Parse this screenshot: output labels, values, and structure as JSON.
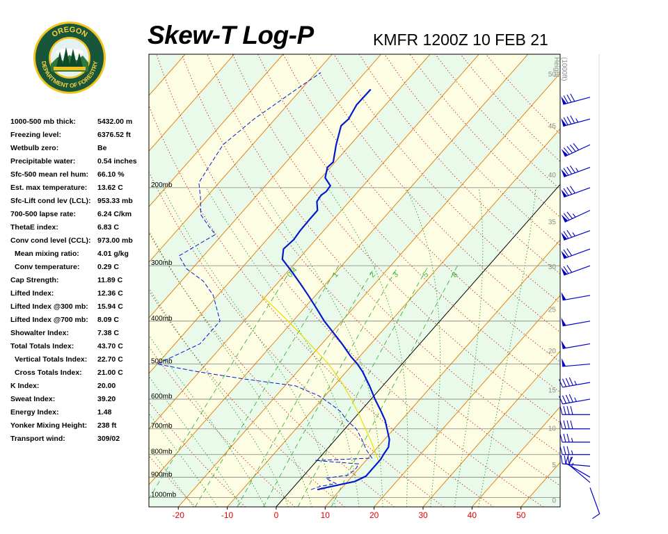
{
  "logo": {
    "name": "Oregon Department of Forestry seal",
    "top_text": "OREGON",
    "bottom_text": "DEPARTMENT OF FORESTRY"
  },
  "header": {
    "title": "Skew-T Log-P",
    "subtitle": "KMFR 1200Z 10 FEB 21"
  },
  "indices": [
    {
      "label": "1000-500 mb thick:",
      "value": "5432.00 m"
    },
    {
      "label": "Freezing level:",
      "value": "6376.52 ft"
    },
    {
      "label": "Wetbulb zero:",
      "value": "Be"
    },
    {
      "label": "Precipitable water:",
      "value": "0.54 inches"
    },
    {
      "label": "Sfc-500 mean rel hum:",
      "value": "66.10 %"
    },
    {
      "label": "Est. max temperature:",
      "value": "13.62 C"
    },
    {
      "label": "Sfc-Lift cond lev (LCL):",
      "value": "953.33 mb"
    },
    {
      "label": "700-500 lapse rate:",
      "value": "6.24 C/km"
    },
    {
      "label": "ThetaE index:",
      "value": "6.83 C"
    },
    {
      "label": "Conv cond level (CCL):",
      "value": "973.00 mb"
    },
    {
      "label": "Mean mixing ratio:",
      "value": "4.01 g/kg",
      "indent": true
    },
    {
      "label": "Conv temperature:",
      "value": "0.29 C",
      "indent": true
    },
    {
      "label": "Cap Strength:",
      "value": "11.89 C"
    },
    {
      "label": "Lifted Index:",
      "value": "12.36 C"
    },
    {
      "label": "Lifted Index @300 mb:",
      "value": "15.94 C"
    },
    {
      "label": "Lifted Index @700 mb:",
      "value": "8.09 C"
    },
    {
      "label": "Showalter Index:",
      "value": "7.38 C"
    },
    {
      "label": "Total Totals Index:",
      "value": "43.70 C"
    },
    {
      "label": "Vertical Totals Index:",
      "value": "22.70 C",
      "indent": true
    },
    {
      "label": "Cross Totals Index:",
      "value": "21.00 C",
      "indent": true
    },
    {
      "label": "K Index:",
      "value": "20.00"
    },
    {
      "label": "Sweat Index:",
      "value": "39.20"
    },
    {
      "label": "Energy Index:",
      "value": "1.48"
    },
    {
      "label": "Yonker Mixing Height:",
      "value": "238 ft"
    },
    {
      "label": "Transport wind:",
      "value": "309/02"
    }
  ],
  "chart_data": {
    "type": "line",
    "diagram": "skew-t log-p",
    "title": "Skew-T Log-P",
    "subtitle": "KMFR 1200Z 10 FEB 21",
    "x_ticks": [
      "-20",
      "-10",
      "0",
      "10",
      "20",
      "30",
      "40",
      "50"
    ],
    "x_range_temperature_c": [
      -26,
      58
    ],
    "pressure_range_mb": [
      1050,
      100
    ],
    "isobars_mb": [
      200,
      300,
      400,
      500,
      600,
      700,
      800,
      900,
      1000
    ],
    "isobar_labels": [
      "200mb",
      "300mb",
      "400mb",
      "500mb",
      "600mb",
      "700mb",
      "800mb",
      "900mb",
      "1000mb"
    ],
    "height_axis_title": [
      "Height",
      "(1000ft)"
    ],
    "height_ticks": [
      {
        "label": "0",
        "kft": 0
      },
      {
        "label": "5",
        "kft": 5
      },
      {
        "label": "10",
        "kft": 10
      },
      {
        "label": "15",
        "kft": 15
      },
      {
        "label": "20",
        "kft": 20
      },
      {
        "label": "25",
        "kft": 25
      },
      {
        "label": "30",
        "kft": 30
      },
      {
        "label": "35",
        "kft": 35
      },
      {
        "label": "40",
        "kft": 40
      },
      {
        "label": "45",
        "kft": 45
      },
      {
        "label": "50",
        "kft": 50
      }
    ],
    "mixing_ratio_labels": [
      "0.4",
      "1",
      "2",
      "3",
      "5",
      "8"
    ],
    "mixing_ratios_gkg": [
      0.4,
      1,
      2,
      3,
      5,
      8
    ],
    "colors": {
      "temperature": "#0018d0",
      "dewpoint": "#0018d0",
      "parcel": "#e8e000",
      "isotherm": "#e07800",
      "dry_adiabat": "#c80000",
      "moist_adiabat": "#009000",
      "mixing_ratio": "#3cb43c",
      "isobar": "#808080",
      "zero_isotherm": "#000000",
      "wind_barbs": "#0000c8",
      "tick_labels": "#e00000",
      "band_a": "#eafaea",
      "band_b": "#fdfde3"
    },
    "series": [
      {
        "kind": "temperature",
        "style": "solid",
        "points": [
          {
            "p": 960,
            "t": 5.3
          },
          {
            "p": 945,
            "t": 7.5
          },
          {
            "p": 920,
            "t": 11.5
          },
          {
            "p": 895,
            "t": 12.8
          },
          {
            "p": 860,
            "t": 12.8
          },
          {
            "p": 820,
            "t": 12.8
          },
          {
            "p": 800,
            "t": 12.5
          },
          {
            "p": 770,
            "t": 12.2
          },
          {
            "p": 740,
            "t": 11.0
          },
          {
            "p": 700,
            "t": 8.6
          },
          {
            "p": 670,
            "t": 6.7
          },
          {
            "p": 640,
            "t": 4.3
          },
          {
            "p": 600,
            "t": 0.8
          },
          {
            "p": 560,
            "t": -2.7
          },
          {
            "p": 520,
            "t": -6.7
          },
          {
            "p": 500,
            "t": -9.1
          },
          {
            "p": 480,
            "t": -11.9
          },
          {
            "p": 450,
            "t": -15.9
          },
          {
            "p": 420,
            "t": -20.4
          },
          {
            "p": 400,
            "t": -23.6
          },
          {
            "p": 380,
            "t": -26.6
          },
          {
            "p": 350,
            "t": -31.5
          },
          {
            "p": 330,
            "t": -35.1
          },
          {
            "p": 310,
            "t": -39.0
          },
          {
            "p": 290,
            "t": -43.3
          },
          {
            "p": 275,
            "t": -44.9
          },
          {
            "p": 262,
            "t": -44.5
          },
          {
            "p": 250,
            "t": -44.8
          },
          {
            "p": 235,
            "t": -44.9
          },
          {
            "p": 225,
            "t": -44.9
          },
          {
            "p": 215,
            "t": -46.6
          },
          {
            "p": 208,
            "t": -46.9
          },
          {
            "p": 204,
            "t": -46.5
          },
          {
            "p": 198,
            "t": -46.7
          },
          {
            "p": 190,
            "t": -49.2
          },
          {
            "p": 180,
            "t": -50.6
          },
          {
            "p": 175,
            "t": -50.4
          },
          {
            "p": 160,
            "t": -52.9
          },
          {
            "p": 145,
            "t": -55.3
          },
          {
            "p": 140,
            "t": -55.0
          },
          {
            "p": 130,
            "t": -55.9
          },
          {
            "p": 120,
            "t": -55.8
          }
        ]
      },
      {
        "kind": "dewpoint",
        "style": "dashed",
        "points": [
          {
            "p": 960,
            "t": 4.0
          },
          {
            "p": 945,
            "t": 5.2
          },
          {
            "p": 930,
            "t": 8.0
          },
          {
            "p": 905,
            "t": 5.0
          },
          {
            "p": 890,
            "t": 9.0
          },
          {
            "p": 860,
            "t": 9.4
          },
          {
            "p": 840,
            "t": 9.1
          },
          {
            "p": 825,
            "t": -0.4
          },
          {
            "p": 815,
            "t": 10.8
          },
          {
            "p": 780,
            "t": 8.1
          },
          {
            "p": 740,
            "t": 5.4
          },
          {
            "p": 700,
            "t": 2.3
          },
          {
            "p": 670,
            "t": -1.1
          },
          {
            "p": 640,
            "t": -4.0
          },
          {
            "p": 620,
            "t": -6.7
          },
          {
            "p": 590,
            "t": -11.2
          },
          {
            "p": 560,
            "t": -17.8
          },
          {
            "p": 540,
            "t": -29.7
          },
          {
            "p": 520,
            "t": -40.5
          },
          {
            "p": 500,
            "t": -50.0
          },
          {
            "p": 450,
            "t": -44.9
          },
          {
            "p": 400,
            "t": -44.9
          },
          {
            "p": 350,
            "t": -50.9
          },
          {
            "p": 325,
            "t": -55.5
          },
          {
            "p": 305,
            "t": -61.1
          },
          {
            "p": 285,
            "t": -65.0
          },
          {
            "p": 270,
            "t": -63.3
          },
          {
            "p": 255,
            "t": -61.4
          },
          {
            "p": 245,
            "t": -64.1
          },
          {
            "p": 230,
            "t": -68.0
          },
          {
            "p": 210,
            "t": -71.2
          },
          {
            "p": 195,
            "t": -74.1
          },
          {
            "p": 180,
            "t": -74.9
          },
          {
            "p": 160,
            "t": -76.0
          },
          {
            "p": 140,
            "t": -74.3
          },
          {
            "p": 120,
            "t": -71.0
          },
          {
            "p": 110,
            "t": -69.0
          }
        ]
      },
      {
        "kind": "parcel",
        "style": "solid",
        "points": [
          {
            "p": 825,
            "t": 12.5
          },
          {
            "p": 800,
            "t": 11.0
          },
          {
            "p": 750,
            "t": 7.8
          },
          {
            "p": 700,
            "t": 4.2
          },
          {
            "p": 650,
            "t": 0.3
          },
          {
            "p": 600,
            "t": -4.0
          },
          {
            "p": 550,
            "t": -9.0
          },
          {
            "p": 500,
            "t": -15.0
          },
          {
            "p": 450,
            "t": -22.5
          },
          {
            "p": 400,
            "t": -31.0
          },
          {
            "p": 350,
            "t": -41.0
          }
        ]
      }
    ],
    "wind_barbs": [
      {
        "p": 950,
        "dir": 160,
        "kt": 10
      },
      {
        "p": 925,
        "dir": 310,
        "kt": 15
      },
      {
        "p": 900,
        "dir": 300,
        "kt": 20
      },
      {
        "p": 850,
        "dir": 275,
        "kt": 30
      },
      {
        "p": 800,
        "dir": 270,
        "kt": 35
      },
      {
        "p": 750,
        "dir": 270,
        "kt": 35
      },
      {
        "p": 700,
        "dir": 270,
        "kt": 40
      },
      {
        "p": 650,
        "dir": 270,
        "kt": 40
      },
      {
        "p": 600,
        "dir": 260,
        "kt": 45
      },
      {
        "p": 550,
        "dir": 260,
        "kt": 45
      },
      {
        "p": 500,
        "dir": 265,
        "kt": 50
      },
      {
        "p": 450,
        "dir": 260,
        "kt": 50
      },
      {
        "p": 400,
        "dir": 260,
        "kt": 50
      },
      {
        "p": 350,
        "dir": 260,
        "kt": 50
      },
      {
        "p": 300,
        "dir": 250,
        "kt": 70
      },
      {
        "p": 275,
        "dir": 250,
        "kt": 70
      },
      {
        "p": 250,
        "dir": 250,
        "kt": 75
      },
      {
        "p": 225,
        "dir": 245,
        "kt": 75
      },
      {
        "p": 200,
        "dir": 250,
        "kt": 80
      },
      {
        "p": 180,
        "dir": 250,
        "kt": 85
      },
      {
        "p": 160,
        "dir": 245,
        "kt": 90
      },
      {
        "p": 140,
        "dir": 255,
        "kt": 85
      },
      {
        "p": 125,
        "dir": 255,
        "kt": 80
      }
    ]
  }
}
